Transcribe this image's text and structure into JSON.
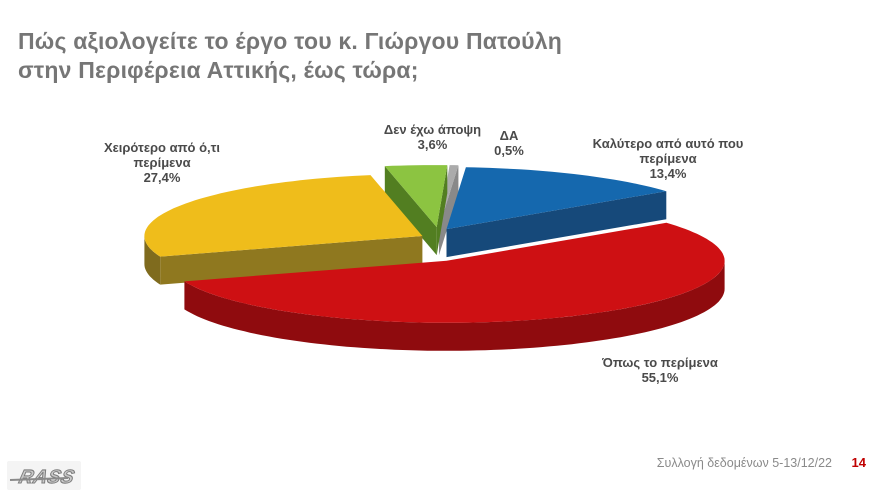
{
  "title": {
    "line1": "Πώς αξιολογείτε το έργο του κ. Γιώργου Πατούλη",
    "line2": "στην Περιφέρεια Αττικής, έως τώρα;"
  },
  "chart_data": {
    "type": "pie",
    "is_3d": true,
    "exploded": true,
    "title": "Πώς αξιολογείτε το έργο του κ. Γιώργου Πατούλη στην Περιφέρεια Αττικής, έως τώρα;",
    "unit": "%",
    "legend": "none (outside callout labels)",
    "slices": [
      {
        "name": "Καλύτερο από αυτό που περίμενα",
        "value": 13.4,
        "pct_label": "13,4%",
        "color": "#1568AE",
        "side": "#123C64",
        "face": "#16497A"
      },
      {
        "name": "Όπως το περίμενα",
        "value": 55.1,
        "pct_label": "55,1%",
        "color": "#CE1013",
        "side": "#8F0B0E",
        "face": "#A00C0F"
      },
      {
        "name": "Χειρότερο από  ό,τι περίμενα",
        "value": 27.4,
        "pct_label": "27,4%",
        "color": "#EFBD1B",
        "side": "#7F6B1E",
        "face": "#8F781F"
      },
      {
        "name": "Δεν έχω άποψη",
        "value": 3.6,
        "pct_label": "3,6%",
        "color": "#8CC441",
        "side": "#4E7C20",
        "face": "#527E21"
      },
      {
        "name": "ΔΑ",
        "value": 0.5,
        "pct_label": "0,5%",
        "color": "#ABABAB",
        "side": "#7F7F7F",
        "face": "#898989"
      }
    ]
  },
  "footer": {
    "note": "Συλλογή δεδομένων 5-13/12/22",
    "page": "14"
  },
  "logo": {
    "text": "RASS"
  }
}
